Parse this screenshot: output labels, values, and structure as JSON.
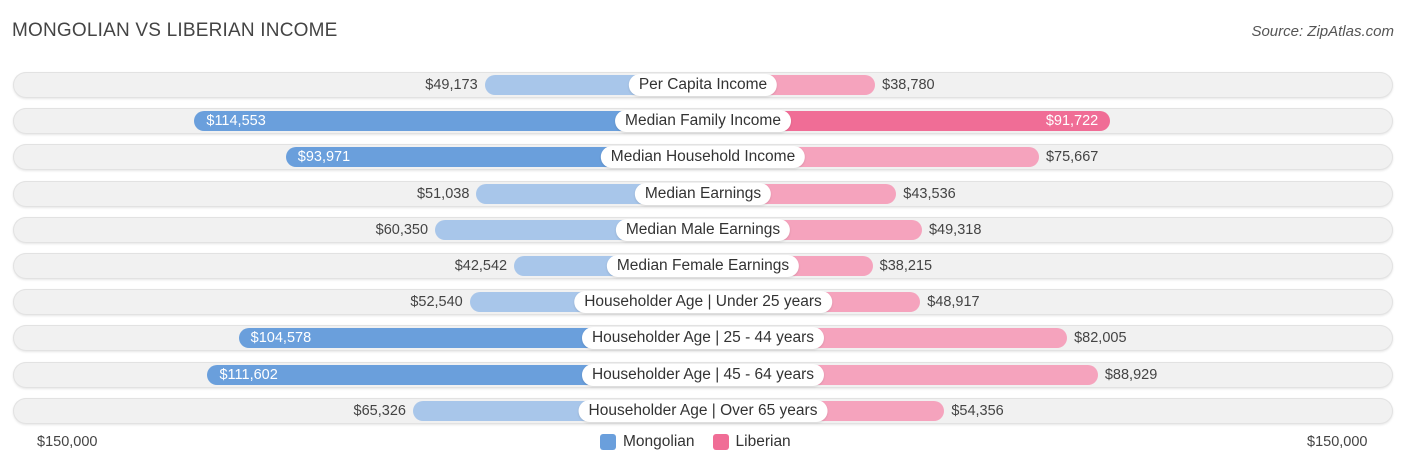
{
  "header": {
    "title": "MONGOLIAN VS LIBERIAN INCOME",
    "source": "Source: ZipAtlas.com"
  },
  "colors": {
    "mongolian_strong": "#6a9fdc",
    "mongolian_light": "#a8c6ea",
    "liberian_strong": "#f06d96",
    "liberian_light": "#f5a3bd"
  },
  "chart_data": {
    "type": "bar",
    "orientation": "horizontal-diverging",
    "title": "MONGOLIAN VS LIBERIAN INCOME",
    "categories": [
      "Per Capita Income",
      "Median Family Income",
      "Median Household Income",
      "Median Earnings",
      "Median Male Earnings",
      "Median Female Earnings",
      "Householder Age | Under 25 years",
      "Householder Age | 25 - 44 years",
      "Householder Age | 45 - 64 years",
      "Householder Age | Over 65 years"
    ],
    "series": [
      {
        "name": "Mongolian",
        "values": [
          49173,
          114553,
          93971,
          51038,
          60350,
          42542,
          52540,
          104578,
          111602,
          65326
        ],
        "labels": [
          "$49,173",
          "$114,553",
          "$93,971",
          "$51,038",
          "$60,350",
          "$42,542",
          "$52,540",
          "$104,578",
          "$111,602",
          "$65,326"
        ]
      },
      {
        "name": "Liberian",
        "values": [
          38780,
          91722,
          75667,
          43536,
          49318,
          38215,
          48917,
          82005,
          88929,
          54356
        ],
        "labels": [
          "$38,780",
          "$91,722",
          "$75,667",
          "$43,536",
          "$49,318",
          "$38,215",
          "$48,917",
          "$82,005",
          "$88,929",
          "$54,356"
        ]
      }
    ],
    "xlim": [
      0,
      150000
    ],
    "axis_labels": {
      "left": "$150,000",
      "right": "$150,000"
    },
    "legend": {
      "placement": "bottom-center",
      "entries": [
        "Mongolian",
        "Liberian"
      ]
    }
  }
}
